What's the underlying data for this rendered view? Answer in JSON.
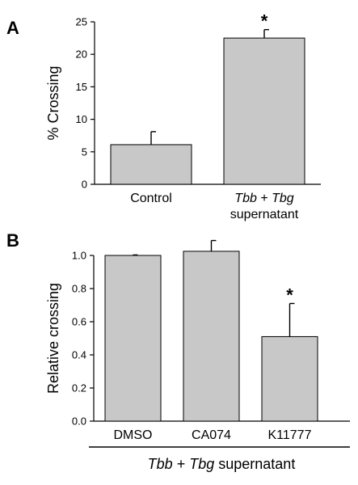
{
  "figure": {
    "underline_color": "#000000"
  },
  "chart_data": [
    {
      "panel_label": "A",
      "type": "bar",
      "ylabel": "% Crossing",
      "ylim": [
        0,
        25
      ],
      "yticks": [
        0,
        5,
        10,
        15,
        20,
        25
      ],
      "bar_color": "#c8c8c8",
      "categories": [
        {
          "lines": [
            [
              {
                "text": "Control",
                "italic": false
              }
            ]
          ]
        },
        {
          "lines": [
            [
              {
                "text": "Tbb",
                "italic": true
              },
              {
                "text": " + ",
                "italic": false
              },
              {
                "text": "Tbg",
                "italic": true
              }
            ],
            [
              {
                "text": "supernatant",
                "italic": false
              }
            ]
          ]
        }
      ],
      "values": [
        6.1,
        22.5
      ],
      "errors": [
        2.0,
        1.3
      ],
      "annotations": [
        "",
        "*"
      ],
      "group_label": null
    },
    {
      "panel_label": "B",
      "type": "bar",
      "ylabel": "Relative crossing",
      "ylim": [
        0,
        1.0
      ],
      "yticks": [
        "0.0",
        "0.2",
        "0.4",
        "0.6",
        "0.8",
        "1.0"
      ],
      "bar_color": "#c8c8c8",
      "categories": [
        {
          "lines": [
            [
              {
                "text": "DMSO",
                "italic": false
              }
            ]
          ]
        },
        {
          "lines": [
            [
              {
                "text": "CA074",
                "italic": false
              }
            ]
          ]
        },
        {
          "lines": [
            [
              {
                "text": "K11777",
                "italic": false
              }
            ]
          ]
        }
      ],
      "values": [
        1.0,
        1.025,
        0.51
      ],
      "errors": [
        0.003,
        0.065,
        0.2
      ],
      "annotations": [
        "",
        "",
        "*"
      ],
      "group_label": [
        {
          "text": "Tbb",
          "italic": true
        },
        {
          "text": " + ",
          "italic": false
        },
        {
          "text": "Tbg",
          "italic": true
        },
        {
          "text": " supernatant",
          "italic": false
        }
      ]
    }
  ]
}
